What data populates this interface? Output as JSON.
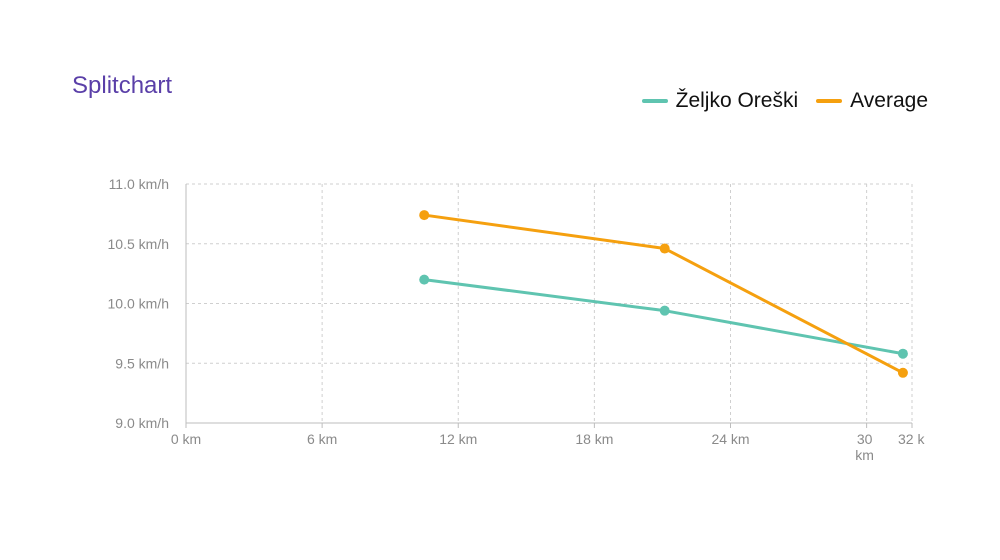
{
  "title": "Splitchart",
  "colors": {
    "title": "#5a3fa8",
    "grid": "#cfcfcf",
    "axis": "#bdbdbd",
    "tick_text": "#8a8a8a"
  },
  "chart_data": {
    "type": "line",
    "title": "Splitchart",
    "xlabel": "",
    "ylabel": "",
    "xlim": [
      0,
      32
    ],
    "ylim": [
      9.0,
      11.0
    ],
    "x_ticks": [
      {
        "value": 0,
        "label": "0 km"
      },
      {
        "value": 6,
        "label": "6 km"
      },
      {
        "value": 12,
        "label": "12 km"
      },
      {
        "value": 18,
        "label": "18 km"
      },
      {
        "value": 24,
        "label": "24 km"
      },
      {
        "value": 30,
        "label": "30 km"
      },
      {
        "value": 32,
        "label": "32 k"
      }
    ],
    "y_ticks": [
      {
        "value": 9.0,
        "label": "9.0 km/h"
      },
      {
        "value": 9.5,
        "label": "9.5 km/h"
      },
      {
        "value": 10.0,
        "label": "10.0 km/h"
      },
      {
        "value": 10.5,
        "label": "10.5 km/h"
      },
      {
        "value": 11.0,
        "label": "11.0 km/h"
      }
    ],
    "grid": true,
    "legend_position": "top-right",
    "series": [
      {
        "name": "Željko Oreški",
        "color": "#5fc4b0",
        "x": [
          10.5,
          21.1,
          31.6
        ],
        "y": [
          10.2,
          9.94,
          9.58
        ]
      },
      {
        "name": "Average",
        "color": "#f5a00f",
        "x": [
          10.5,
          21.1,
          31.6
        ],
        "y": [
          10.74,
          10.46,
          9.42
        ]
      }
    ]
  }
}
